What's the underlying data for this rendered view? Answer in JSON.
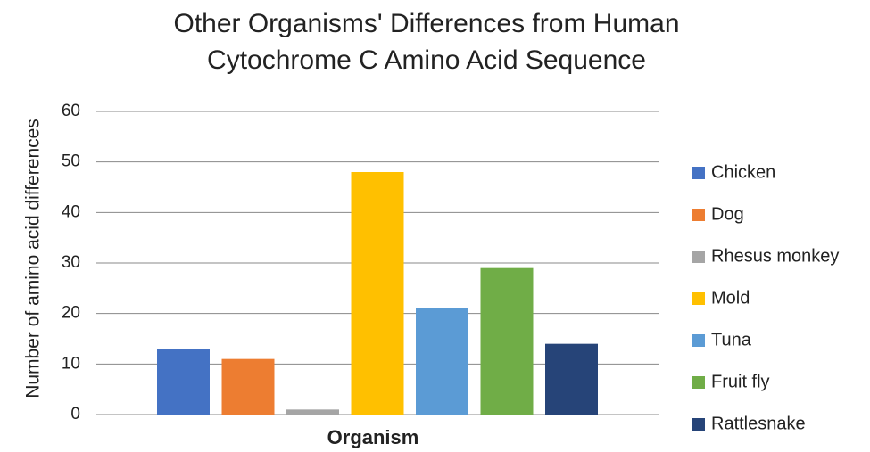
{
  "chart_data": {
    "type": "bar",
    "title": [
      "Other Organisms' Differences from Human",
      "Cytochrome C Amino Acid Sequence"
    ],
    "x_label": "Organism",
    "y_label": "Number of amino acid differences",
    "categories": [
      null
    ],
    "series": [
      {
        "name": "Chicken",
        "color": "#4472c4",
        "values": [
          13
        ]
      },
      {
        "name": "Dog",
        "color": "#ed7d31",
        "values": [
          11
        ]
      },
      {
        "name": "Rhesus monkey",
        "color": "#a5a5a5",
        "values": [
          1
        ]
      },
      {
        "name": "Mold",
        "color": "#ffc000",
        "values": [
          48
        ]
      },
      {
        "name": "Tuna",
        "color": "#5b9bd5",
        "values": [
          21
        ]
      },
      {
        "name": "Fruit fly",
        "color": "#70ad47",
        "values": [
          29
        ]
      },
      {
        "name": "Rattlesnake",
        "color": "#264478",
        "values": [
          14
        ]
      }
    ],
    "ylim": [
      0,
      60
    ],
    "yticks": [
      0,
      10,
      20,
      30,
      40,
      50,
      60
    ],
    "grid": true,
    "legend": "right"
  }
}
